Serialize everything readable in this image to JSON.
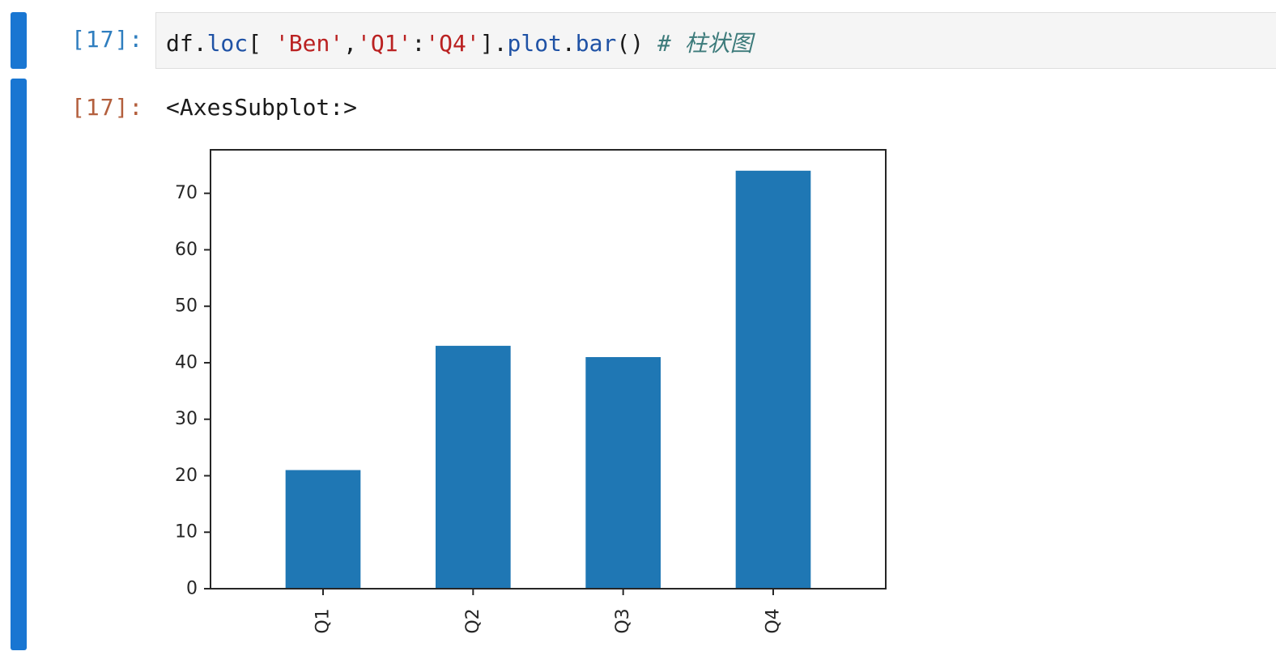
{
  "cells": {
    "input": {
      "prompt": "[17]:",
      "code": {
        "obj": "df",
        "dot1": ".",
        "attr1": "loc",
        "open": "[ ",
        "str1": "'Ben'",
        "comma": ",",
        "str2": "'Q1'",
        "colon": ":",
        "str3": "'Q4'",
        "close": "]",
        "dot2": ".",
        "attr2": "plot",
        "dot3": ".",
        "attr3": "bar",
        "parens": "()",
        "space": " ",
        "comment": "# 柱状图"
      }
    },
    "output": {
      "prompt": "[17]:",
      "text": "<AxesSubplot:>"
    }
  },
  "colors": {
    "cell_bar": "#1976d2",
    "bar": "#1f77b4"
  },
  "chart_data": {
    "type": "bar",
    "categories": [
      "Q1",
      "Q2",
      "Q3",
      "Q4"
    ],
    "values": [
      21,
      43,
      41,
      74
    ],
    "ylim": [
      0,
      77.7
    ],
    "yticks": [
      0,
      10,
      20,
      30,
      40,
      50,
      60,
      70
    ],
    "title": "",
    "xlabel": "",
    "ylabel": "",
    "legend": "none",
    "grid": false
  }
}
